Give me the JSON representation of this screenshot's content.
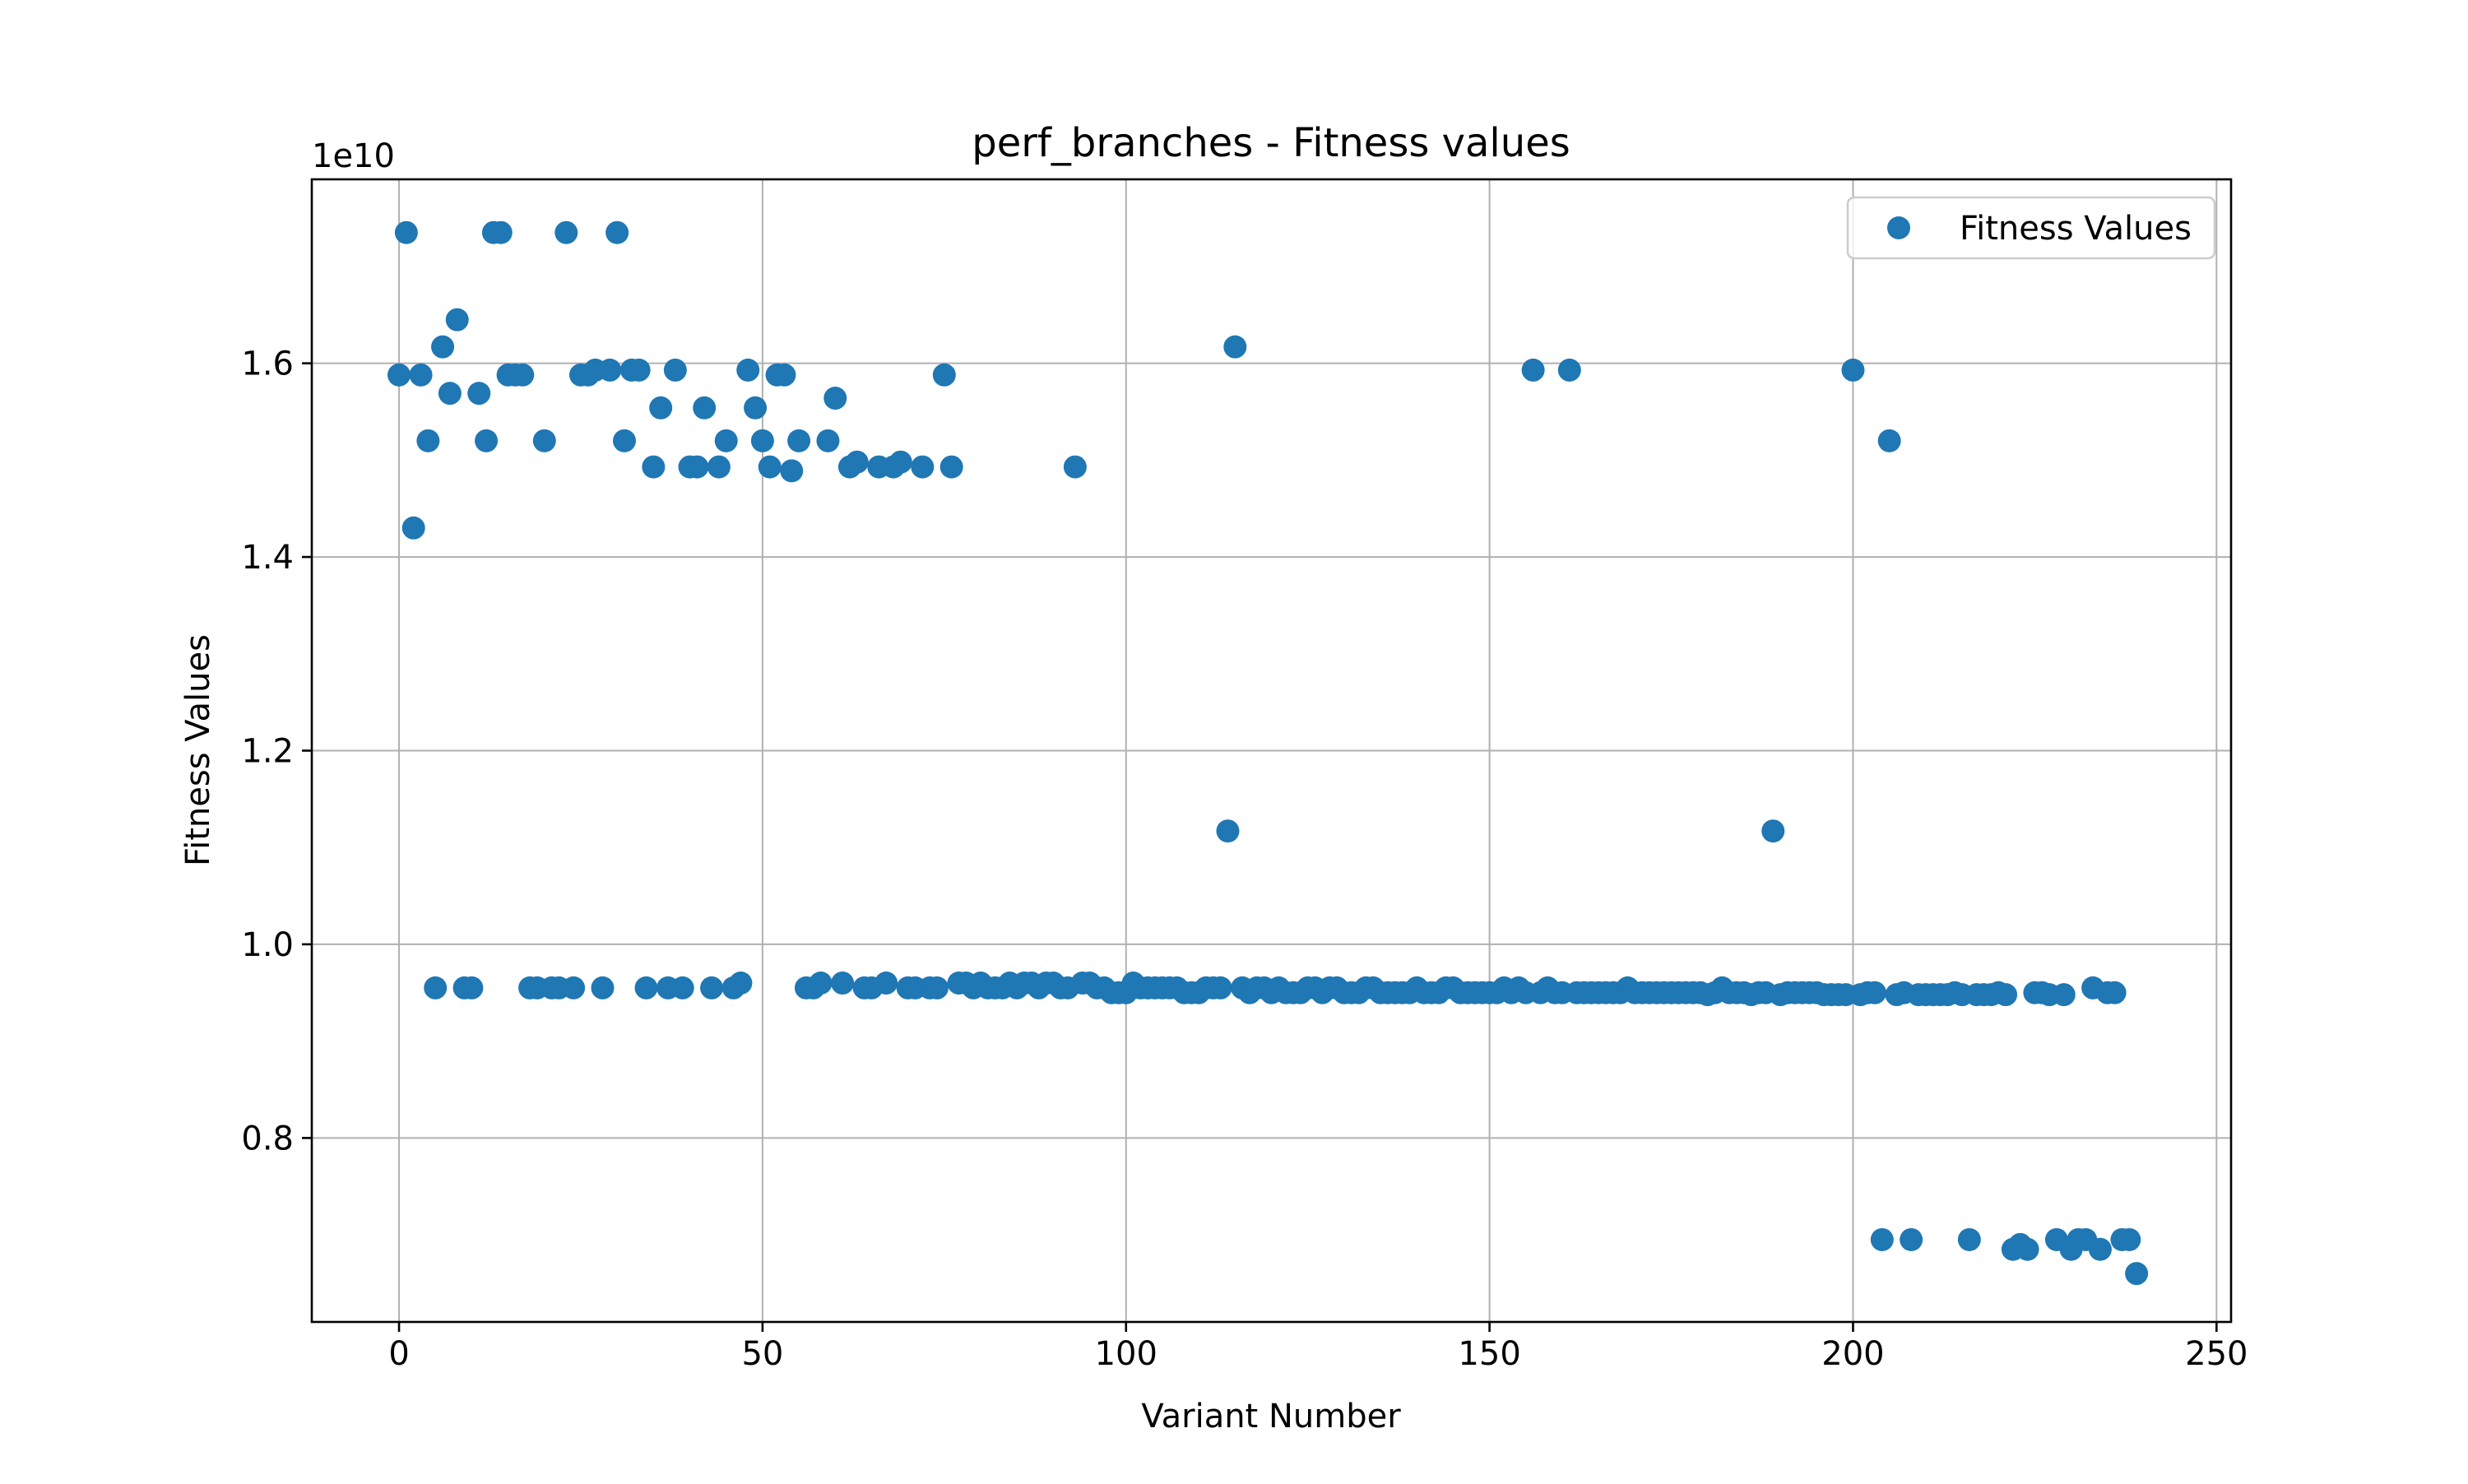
{
  "chart_data": {
    "type": "scatter",
    "title": "perf_branches - Fitness values",
    "xlabel": "Variant Number",
    "ylabel": "Fitness Values",
    "y_offset_label": "1e10",
    "xlim": [
      -12,
      252
    ],
    "ylim": [
      0.61,
      1.79
    ],
    "x_ticks": [
      0,
      50,
      100,
      150,
      200,
      250
    ],
    "x_tick_labels": [
      "0",
      "50",
      "100",
      "150",
      "200",
      "250"
    ],
    "y_ticks": [
      0.8,
      1.0,
      1.2,
      1.4,
      1.6
    ],
    "y_tick_labels": [
      "0.8",
      "1.0",
      "1.2",
      "1.4",
      "1.6"
    ],
    "grid": true,
    "legend_position": "top-right",
    "color": "#1f77b4",
    "series": [
      {
        "name": "Fitness Values",
        "points": [
          [
            0,
            1.588
          ],
          [
            1,
            1.735
          ],
          [
            2,
            1.43
          ],
          [
            3,
            1.588
          ],
          [
            4,
            1.52
          ],
          [
            5,
            0.955
          ],
          [
            6,
            1.617
          ],
          [
            7,
            1.569
          ],
          [
            8,
            1.645
          ],
          [
            9,
            0.955
          ],
          [
            10,
            0.955
          ],
          [
            11,
            1.569
          ],
          [
            12,
            1.52
          ],
          [
            13,
            1.735
          ],
          [
            14,
            1.735
          ],
          [
            15,
            1.588
          ],
          [
            16,
            1.588
          ],
          [
            17,
            1.588
          ],
          [
            18,
            0.955
          ],
          [
            19,
            0.955
          ],
          [
            20,
            1.52
          ],
          [
            21,
            0.955
          ],
          [
            22,
            0.955
          ],
          [
            23,
            1.735
          ],
          [
            24,
            0.955
          ],
          [
            25,
            1.588
          ],
          [
            26,
            1.588
          ],
          [
            27,
            1.593
          ],
          [
            28,
            0.955
          ],
          [
            29,
            1.593
          ],
          [
            30,
            1.735
          ],
          [
            31,
            1.52
          ],
          [
            32,
            1.593
          ],
          [
            33,
            1.593
          ],
          [
            34,
            0.955
          ],
          [
            35,
            1.493
          ],
          [
            36,
            1.554
          ],
          [
            37,
            0.955
          ],
          [
            38,
            1.593
          ],
          [
            39,
            0.955
          ],
          [
            40,
            1.493
          ],
          [
            41,
            1.493
          ],
          [
            42,
            1.554
          ],
          [
            43,
            0.955
          ],
          [
            44,
            1.493
          ],
          [
            45,
            1.52
          ],
          [
            46,
            0.955
          ],
          [
            47,
            0.96
          ],
          [
            48,
            1.593
          ],
          [
            49,
            1.554
          ],
          [
            50,
            1.52
          ],
          [
            51,
            1.493
          ],
          [
            52,
            1.588
          ],
          [
            53,
            1.588
          ],
          [
            54,
            1.489
          ],
          [
            55,
            1.52
          ],
          [
            56,
            0.955
          ],
          [
            57,
            0.955
          ],
          [
            58,
            0.96
          ],
          [
            59,
            1.52
          ],
          [
            60,
            1.564
          ],
          [
            61,
            0.96
          ],
          [
            62,
            1.493
          ],
          [
            63,
            1.498
          ],
          [
            64,
            0.955
          ],
          [
            65,
            0.955
          ],
          [
            66,
            1.493
          ],
          [
            67,
            0.96
          ],
          [
            68,
            1.493
          ],
          [
            69,
            1.498
          ],
          [
            70,
            0.955
          ],
          [
            71,
            0.955
          ],
          [
            72,
            1.493
          ],
          [
            73,
            0.955
          ],
          [
            74,
            0.955
          ],
          [
            75,
            1.588
          ],
          [
            76,
            1.493
          ],
          [
            77,
            0.96
          ],
          [
            78,
            0.96
          ],
          [
            79,
            0.955
          ],
          [
            80,
            0.96
          ],
          [
            81,
            0.955
          ],
          [
            82,
            0.955
          ],
          [
            83,
            0.955
          ],
          [
            84,
            0.96
          ],
          [
            85,
            0.955
          ],
          [
            86,
            0.96
          ],
          [
            87,
            0.96
          ],
          [
            88,
            0.955
          ],
          [
            89,
            0.96
          ],
          [
            90,
            0.96
          ],
          [
            91,
            0.955
          ],
          [
            92,
            0.955
          ],
          [
            93,
            1.493
          ],
          [
            94,
            0.96
          ],
          [
            95,
            0.96
          ],
          [
            96,
            0.955
          ],
          [
            97,
            0.955
          ],
          [
            98,
            0.95
          ],
          [
            99,
            0.95
          ],
          [
            100,
            0.95
          ],
          [
            101,
            0.96
          ],
          [
            102,
            0.955
          ],
          [
            103,
            0.955
          ],
          [
            104,
            0.955
          ],
          [
            105,
            0.955
          ],
          [
            106,
            0.955
          ],
          [
            107,
            0.955
          ],
          [
            108,
            0.95
          ],
          [
            109,
            0.95
          ],
          [
            110,
            0.95
          ],
          [
            111,
            0.955
          ],
          [
            112,
            0.955
          ],
          [
            113,
            0.955
          ],
          [
            114,
            1.117
          ],
          [
            115,
            1.617
          ],
          [
            116,
            0.955
          ],
          [
            117,
            0.95
          ],
          [
            118,
            0.955
          ],
          [
            119,
            0.955
          ],
          [
            120,
            0.95
          ],
          [
            121,
            0.955
          ],
          [
            122,
            0.95
          ],
          [
            123,
            0.95
          ],
          [
            124,
            0.95
          ],
          [
            125,
            0.955
          ],
          [
            126,
            0.955
          ],
          [
            127,
            0.95
          ],
          [
            128,
            0.955
          ],
          [
            129,
            0.955
          ],
          [
            130,
            0.95
          ],
          [
            131,
            0.95
          ],
          [
            132,
            0.95
          ],
          [
            133,
            0.955
          ],
          [
            134,
            0.955
          ],
          [
            135,
            0.95
          ],
          [
            136,
            0.95
          ],
          [
            137,
            0.95
          ],
          [
            138,
            0.95
          ],
          [
            139,
            0.95
          ],
          [
            140,
            0.955
          ],
          [
            141,
            0.95
          ],
          [
            142,
            0.95
          ],
          [
            143,
            0.95
          ],
          [
            144,
            0.955
          ],
          [
            145,
            0.955
          ],
          [
            146,
            0.95
          ],
          [
            147,
            0.95
          ],
          [
            148,
            0.95
          ],
          [
            149,
            0.95
          ],
          [
            150,
            0.95
          ],
          [
            151,
            0.95
          ],
          [
            152,
            0.955
          ],
          [
            153,
            0.95
          ],
          [
            154,
            0.955
          ],
          [
            155,
            0.95
          ],
          [
            156,
            1.593
          ],
          [
            157,
            0.95
          ],
          [
            158,
            0.955
          ],
          [
            159,
            0.95
          ],
          [
            160,
            0.95
          ],
          [
            161,
            1.593
          ],
          [
            162,
            0.95
          ],
          [
            163,
            0.95
          ],
          [
            164,
            0.95
          ],
          [
            165,
            0.95
          ],
          [
            166,
            0.95
          ],
          [
            167,
            0.95
          ],
          [
            168,
            0.95
          ],
          [
            169,
            0.955
          ],
          [
            170,
            0.95
          ],
          [
            171,
            0.95
          ],
          [
            172,
            0.95
          ],
          [
            173,
            0.95
          ],
          [
            174,
            0.95
          ],
          [
            175,
            0.95
          ],
          [
            176,
            0.95
          ],
          [
            177,
            0.95
          ],
          [
            178,
            0.95
          ],
          [
            179,
            0.95
          ],
          [
            180,
            0.948
          ],
          [
            181,
            0.95
          ],
          [
            182,
            0.955
          ],
          [
            183,
            0.95
          ],
          [
            184,
            0.95
          ],
          [
            185,
            0.95
          ],
          [
            186,
            0.948
          ],
          [
            187,
            0.95
          ],
          [
            188,
            0.95
          ],
          [
            189,
            1.117
          ],
          [
            190,
            0.948
          ],
          [
            191,
            0.95
          ],
          [
            192,
            0.95
          ],
          [
            193,
            0.95
          ],
          [
            194,
            0.95
          ],
          [
            195,
            0.95
          ],
          [
            196,
            0.948
          ],
          [
            197,
            0.948
          ],
          [
            198,
            0.948
          ],
          [
            199,
            0.948
          ],
          [
            200,
            1.593
          ],
          [
            201,
            0.948
          ],
          [
            202,
            0.95
          ],
          [
            203,
            0.95
          ],
          [
            204,
            0.695
          ],
          [
            205,
            1.52
          ],
          [
            206,
            0.948
          ],
          [
            207,
            0.95
          ],
          [
            208,
            0.695
          ],
          [
            209,
            0.948
          ],
          [
            210,
            0.948
          ],
          [
            211,
            0.948
          ],
          [
            212,
            0.948
          ],
          [
            213,
            0.948
          ],
          [
            214,
            0.95
          ],
          [
            215,
            0.948
          ],
          [
            216,
            0.695
          ],
          [
            217,
            0.948
          ],
          [
            218,
            0.948
          ],
          [
            219,
            0.948
          ],
          [
            220,
            0.95
          ],
          [
            221,
            0.948
          ],
          [
            222,
            0.685
          ],
          [
            223,
            0.69
          ],
          [
            224,
            0.685
          ],
          [
            225,
            0.95
          ],
          [
            226,
            0.95
          ],
          [
            227,
            0.948
          ],
          [
            228,
            0.695
          ],
          [
            229,
            0.948
          ],
          [
            230,
            0.685
          ],
          [
            231,
            0.695
          ],
          [
            232,
            0.695
          ],
          [
            233,
            0.955
          ],
          [
            234,
            0.685
          ],
          [
            235,
            0.95
          ],
          [
            236,
            0.95
          ],
          [
            237,
            0.695
          ],
          [
            238,
            0.695
          ],
          [
            239,
            0.66
          ]
        ]
      }
    ]
  }
}
